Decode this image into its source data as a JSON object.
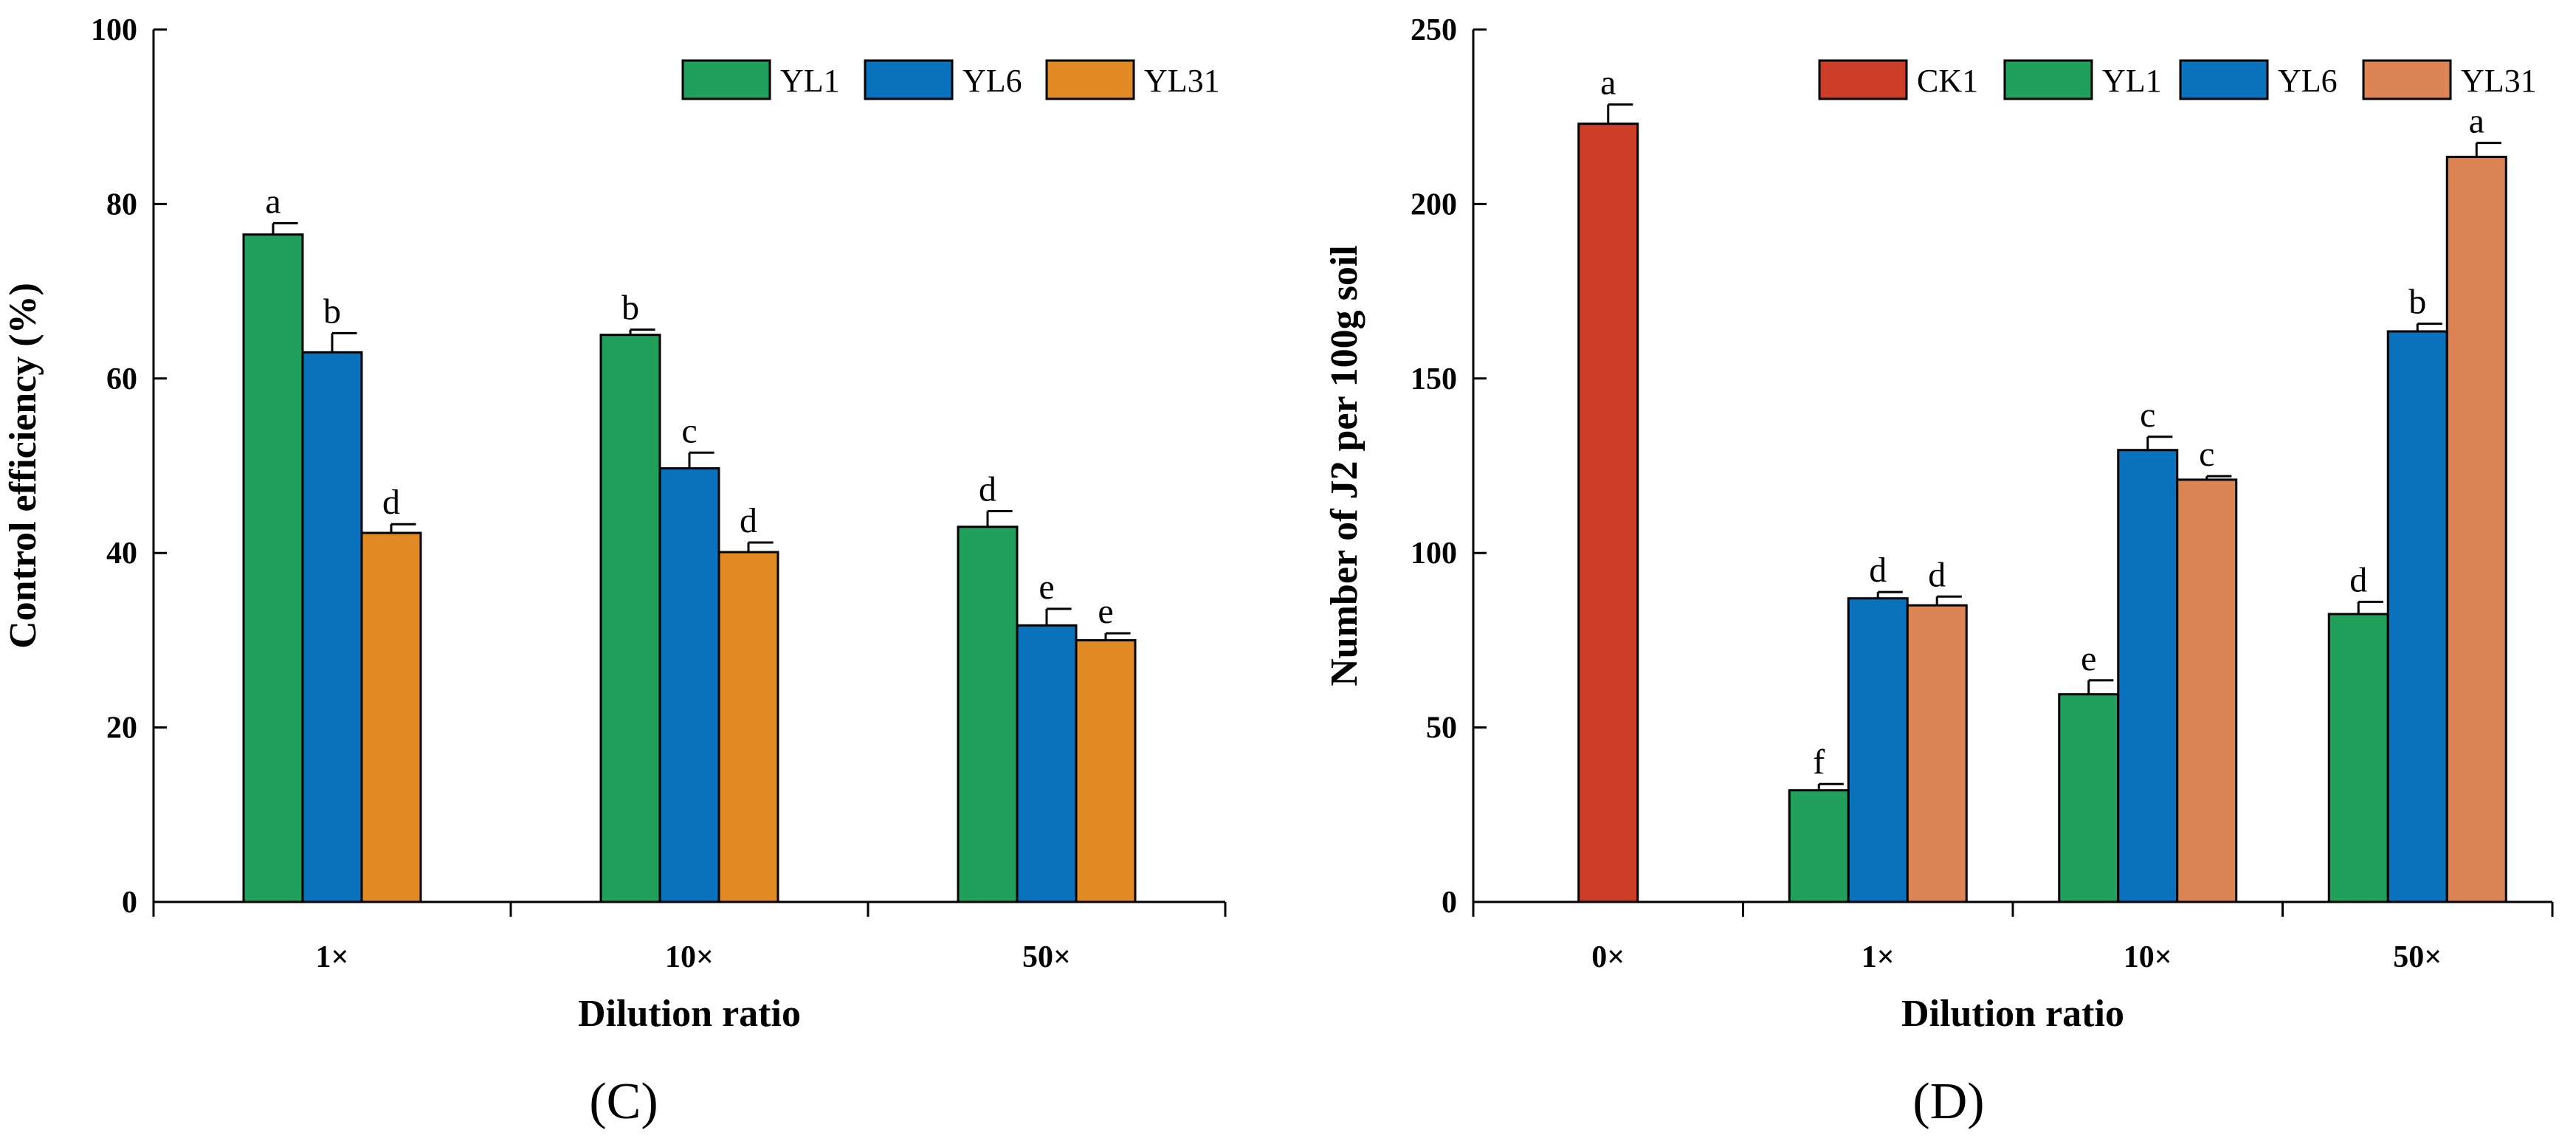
{
  "chart_data": [
    {
      "type": "bar",
      "panel_label": "(C)",
      "xlabel": "Dilution ratio",
      "ylabel": "Control efficiency (%)",
      "ylim": [
        0,
        100
      ],
      "yticks": [
        0,
        20,
        40,
        60,
        80,
        100
      ],
      "categories": [
        "1×",
        "10×",
        "50×"
      ],
      "legend_position": "top-right",
      "series": [
        {
          "name": "YL1",
          "color": "#20a05a",
          "values": [
            76.5,
            65,
            43
          ],
          "errors": [
            1.3,
            0.6,
            1.8
          ],
          "letters": [
            "a",
            "b",
            "d"
          ]
        },
        {
          "name": "YL6",
          "color": "#0a72bc",
          "values": [
            63,
            49.7,
            31.7
          ],
          "errors": [
            2.2,
            1.8,
            1.9
          ],
          "letters": [
            "b",
            "c",
            "e"
          ]
        },
        {
          "name": "YL31",
          "color": "#e28a24",
          "values": [
            42.3,
            40.1,
            30
          ],
          "errors": [
            1.0,
            1.1,
            0.8
          ],
          "letters": [
            "d",
            "d",
            "e"
          ]
        }
      ]
    },
    {
      "type": "bar",
      "panel_label": "(D)",
      "xlabel": "Dilution ratio",
      "ylabel": "Number of J2 per 100g soil",
      "ylim": [
        0,
        250
      ],
      "yticks": [
        0,
        50,
        100,
        150,
        200,
        250
      ],
      "categories": [
        "0×",
        "1×",
        "10×",
        "50×"
      ],
      "legend_position": "top-right",
      "series": [
        {
          "name": "CK1",
          "color": "#cc3e28",
          "values": [
            223,
            null,
            null,
            null
          ],
          "errors": [
            5.5,
            null,
            null,
            null
          ],
          "letters": [
            "a",
            null,
            null,
            null
          ]
        },
        {
          "name": "YL1",
          "color": "#20a05a",
          "values": [
            null,
            32,
            59.5,
            82.5
          ],
          "errors": [
            null,
            1.8,
            4.0,
            3.5
          ],
          "letters": [
            null,
            "f",
            "e",
            "d"
          ]
        },
        {
          "name": "YL6",
          "color": "#0a72bc",
          "values": [
            null,
            87,
            129.5,
            163.5
          ],
          "errors": [
            null,
            1.8,
            3.8,
            2.2
          ],
          "letters": [
            null,
            "d",
            "c",
            "b"
          ]
        },
        {
          "name": "YL31",
          "color": "#dc8454",
          "values": [
            null,
            85,
            121,
            213.5
          ],
          "errors": [
            null,
            2.5,
            1.0,
            4.0
          ],
          "letters": [
            null,
            "d",
            "c",
            "a"
          ]
        }
      ]
    }
  ]
}
